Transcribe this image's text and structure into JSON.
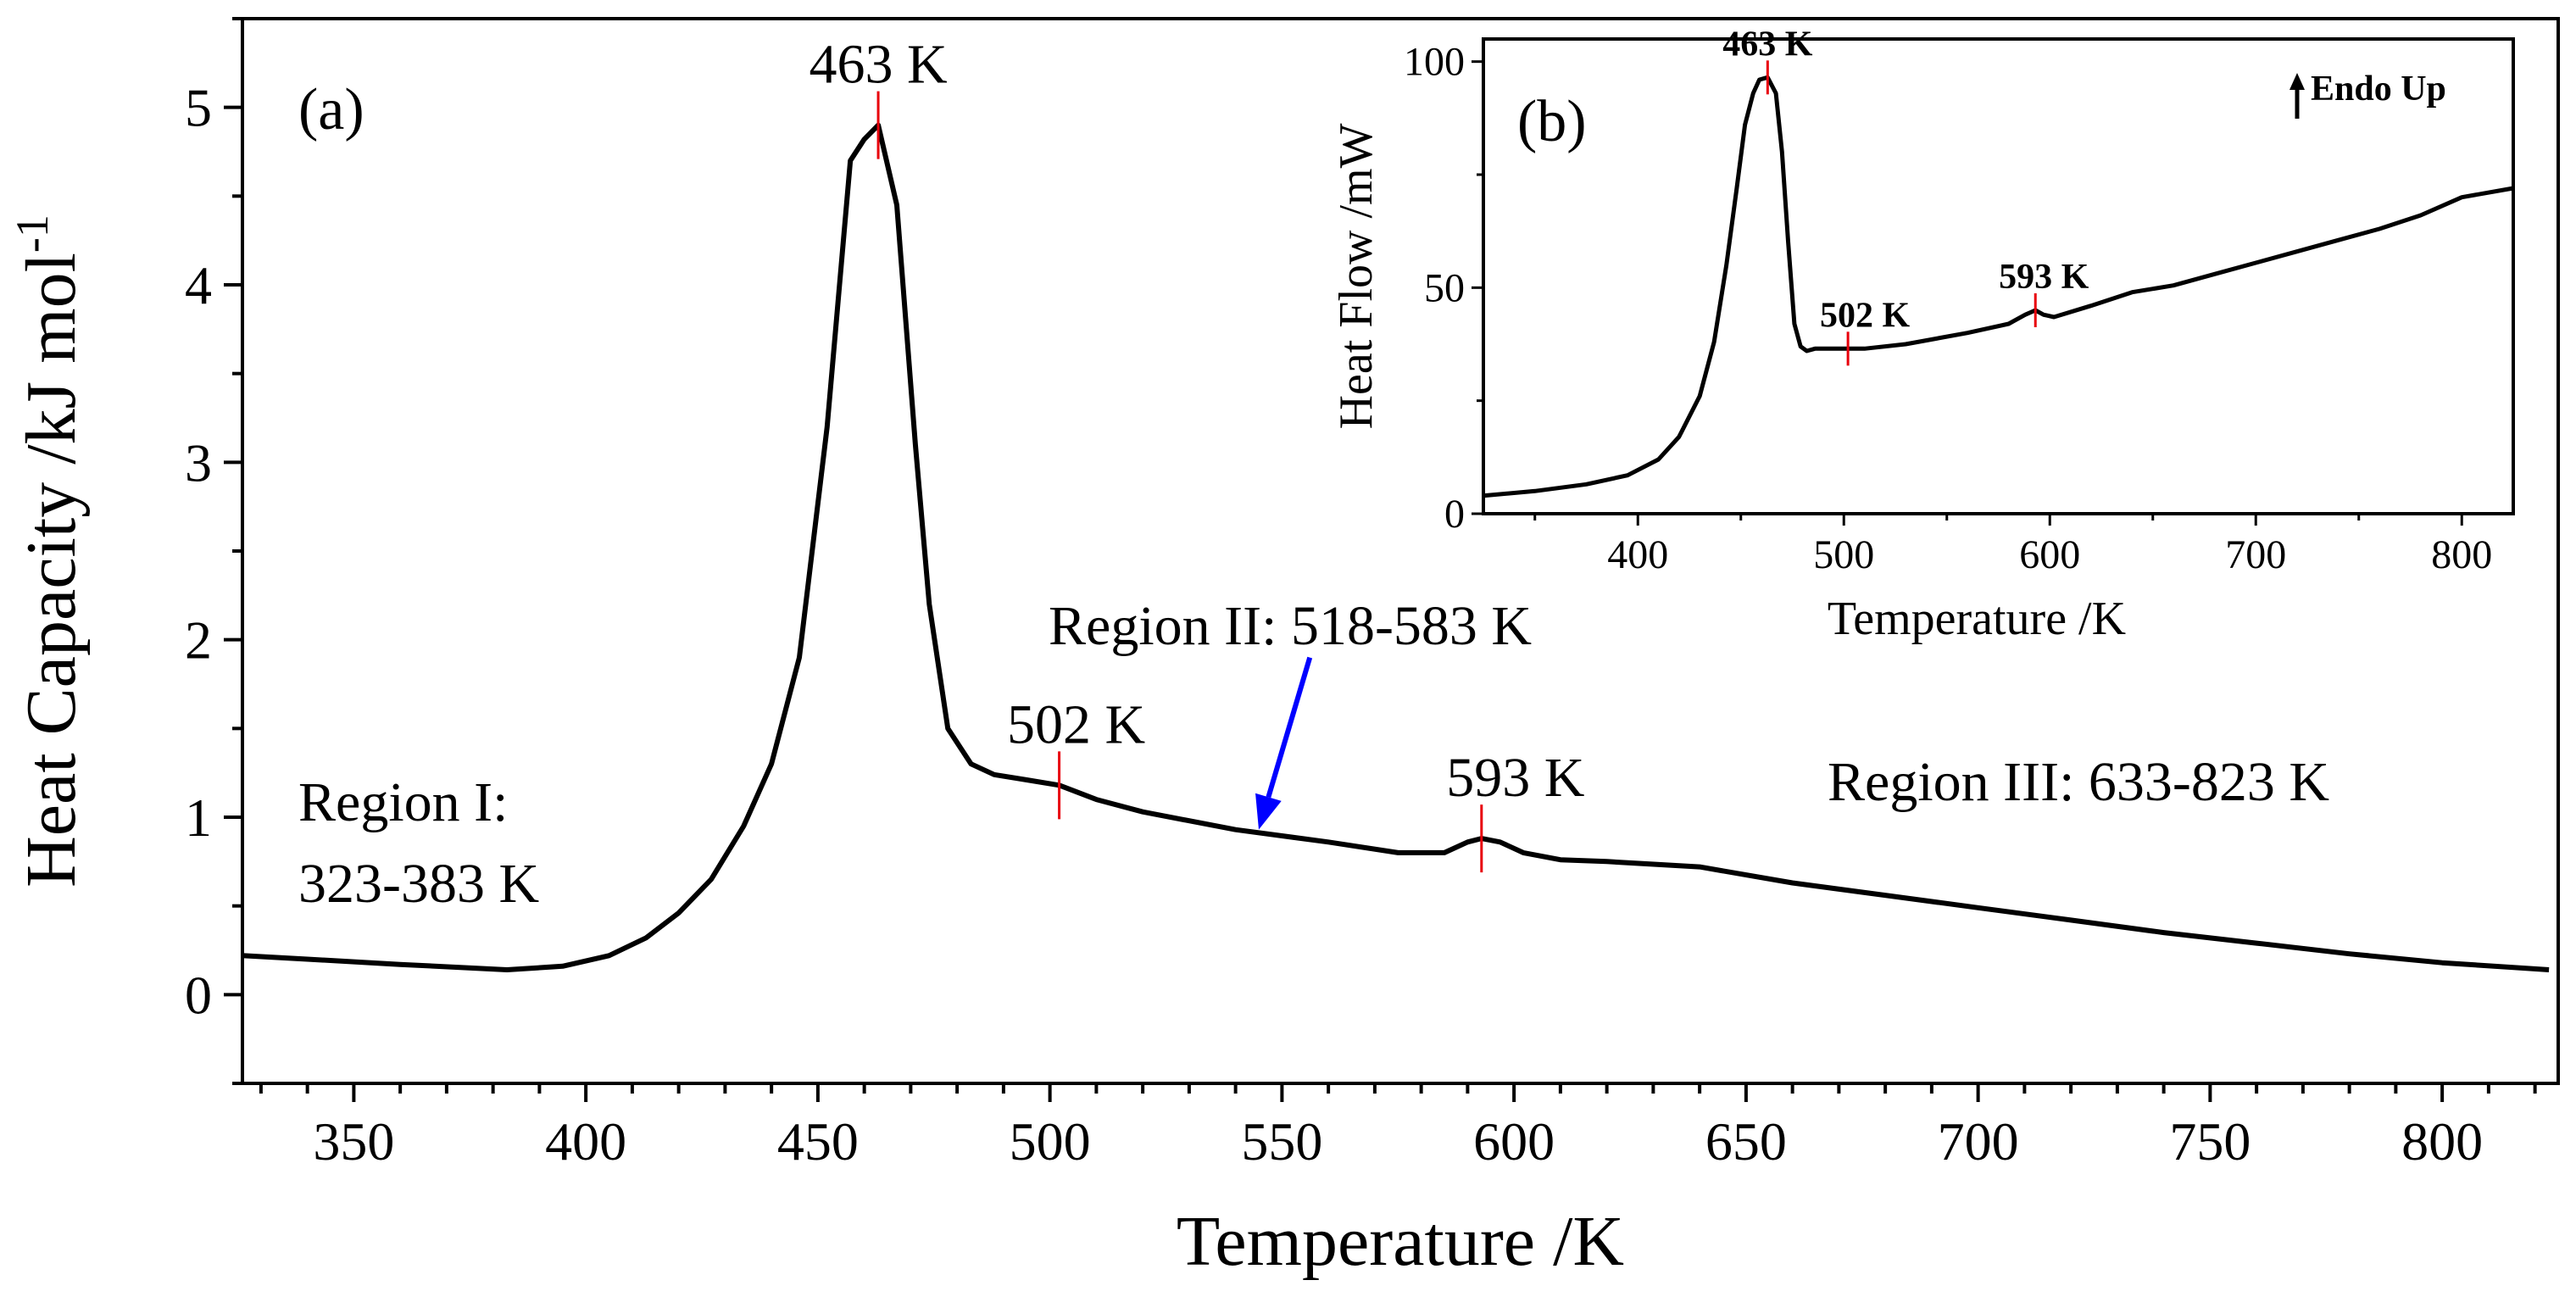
{
  "chart_data": [
    {
      "panel": "(a)",
      "type": "line",
      "xlabel": "Temperature /K",
      "ylabel": "Heat Capacity /kJ mol",
      "ylabel_superscript": "-1",
      "xlim": [
        326,
        825
      ],
      "ylim": [
        -0.5,
        5.5
      ],
      "xticks": [
        350,
        400,
        450,
        500,
        550,
        600,
        650,
        700,
        750,
        800
      ],
      "yticks": [
        0,
        1,
        2,
        3,
        4,
        5
      ],
      "series": [
        {
          "name": "Heat Capacity",
          "color": "#000000",
          "x": [
            326,
            340,
            360,
            383,
            395,
            405,
            413,
            420,
            427,
            434,
            440,
            446,
            452,
            457,
            460,
            463,
            467,
            471,
            474,
            478,
            483,
            488,
            495,
            502,
            510,
            520,
            540,
            560,
            575,
            585,
            590,
            593,
            597,
            602,
            610,
            620,
            640,
            660,
            680,
            700,
            720,
            740,
            760,
            780,
            800,
            823
          ],
          "y": [
            0.22,
            0.2,
            0.17,
            0.14,
            0.16,
            0.22,
            0.32,
            0.46,
            0.65,
            0.95,
            1.3,
            1.9,
            3.2,
            4.7,
            4.82,
            4.9,
            4.45,
            3.1,
            2.2,
            1.5,
            1.3,
            1.24,
            1.21,
            1.18,
            1.1,
            1.03,
            0.93,
            0.86,
            0.8,
            0.8,
            0.86,
            0.88,
            0.86,
            0.8,
            0.76,
            0.75,
            0.72,
            0.63,
            0.56,
            0.49,
            0.42,
            0.35,
            0.29,
            0.23,
            0.18,
            0.14
          ]
        }
      ],
      "markers": [
        {
          "x": 463,
          "label": "463 K",
          "color": "#e8000b"
        },
        {
          "x": 502,
          "label": "502 K",
          "color": "#e8000b"
        },
        {
          "x": 593,
          "label": "593 K",
          "color": "#e8000b"
        }
      ],
      "region_labels": {
        "region1_line1": "Region I:",
        "region1_line2": "323-383 K",
        "region2": "Region II: 518-583 K",
        "region3": "Region III: 633-823 K"
      },
      "arrow": {
        "color": "#0000ff",
        "from": [
          556,
          1.9
        ],
        "to": [
          545,
          0.93
        ]
      }
    },
    {
      "panel": "(b)",
      "type": "line",
      "xlabel": "Temperature /K",
      "ylabel": "Heat Flow /mW",
      "xlim": [
        325,
        825
      ],
      "ylim": [
        0,
        105
      ],
      "xticks": [
        400,
        500,
        600,
        700,
        800
      ],
      "yticks": [
        0,
        50,
        100
      ],
      "legend_note": "Endo Up",
      "series": [
        {
          "name": "Heat Flow",
          "color": "#000000",
          "x": [
            325,
            350,
            375,
            395,
            410,
            420,
            430,
            437,
            443,
            448,
            452,
            456,
            459,
            463,
            467,
            470,
            473,
            476,
            479,
            482,
            486,
            490,
            500,
            510,
            530,
            560,
            580,
            588,
            593,
            597,
            602,
            620,
            640,
            660,
            680,
            700,
            720,
            740,
            760,
            780,
            800,
            825
          ],
          "y": [
            4,
            5,
            6.5,
            8.5,
            12,
            17,
            26,
            38,
            55,
            72,
            86,
            93,
            96,
            96.5,
            93,
            80,
            60,
            42,
            37,
            36,
            36.5,
            36.5,
            36.5,
            36.5,
            37.5,
            40,
            42,
            44,
            45,
            44,
            43.5,
            46,
            49,
            50.5,
            53,
            55.5,
            58,
            60.5,
            63,
            66,
            70,
            72
          ]
        }
      ],
      "markers": [
        {
          "x": 463,
          "label": "463 K",
          "color": "#e8000b"
        },
        {
          "x": 502,
          "label": "502 K",
          "color": "#e8000b"
        },
        {
          "x": 593,
          "label": "593 K",
          "color": "#e8000b"
        }
      ]
    }
  ]
}
